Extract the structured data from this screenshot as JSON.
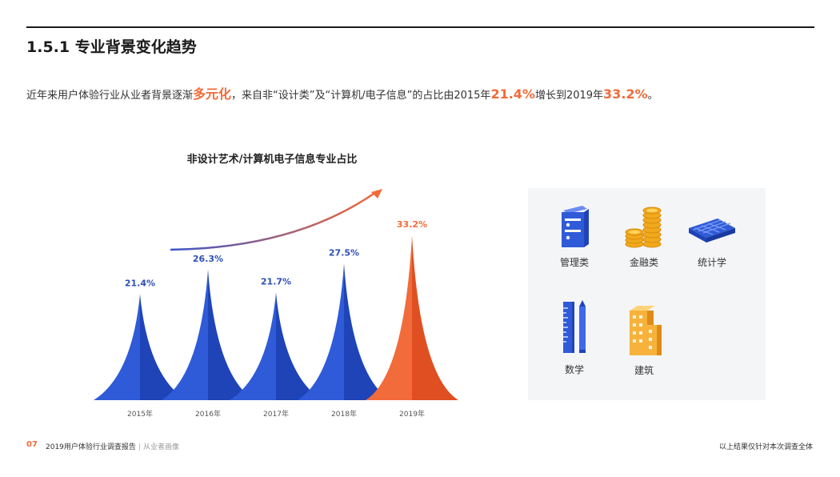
{
  "header": {
    "section_title": "1.5.1 专业背景变化趋势"
  },
  "intro": {
    "part1": "近年来用户体验行业从业者背景逐渐",
    "highlight1": "多元化",
    "part2": "，来自非“设计类”及“计算机/电子信息”的占比由2015年",
    "highlight2": "21.4%",
    "part3": "增长到2019年",
    "highlight3": "33.2%",
    "part4": "。"
  },
  "chart_data": {
    "type": "bar",
    "title": "非设计艺术/计算机电子信息专业占比",
    "categories": [
      "2015年",
      "2016年",
      "2017年",
      "2018年",
      "2019年"
    ],
    "values": [
      21.4,
      26.3,
      21.7,
      27.5,
      33.2
    ],
    "value_labels": [
      "21.4%",
      "26.3%",
      "21.7%",
      "27.5%",
      "33.2%"
    ],
    "unit": "%",
    "colors": {
      "default": "#2f5bd8",
      "default_dark": "#1f44b8",
      "highlight": "#f26b3a",
      "highlight_dark": "#e04f22",
      "label_default": "#2d4fb5",
      "label_highlight": "#f26b3a"
    },
    "highlight_index": 4,
    "trend_arrow": true,
    "grid": false,
    "legend": "none"
  },
  "fields": {
    "items": [
      {
        "label": "管理类",
        "icon": "books-icon"
      },
      {
        "label": "金融类",
        "icon": "coins-icon"
      },
      {
        "label": "统计学",
        "icon": "calculator-icon"
      },
      {
        "label": "数学",
        "icon": "ruler-pencil-icon"
      },
      {
        "label": "建筑",
        "icon": "building-icon"
      }
    ]
  },
  "footer": {
    "page_number": "07",
    "report_title": "2019用户体验行业调查报告",
    "separator": "|",
    "section": "从业者画像",
    "note": "以上结果仅针对本次调查全体"
  }
}
